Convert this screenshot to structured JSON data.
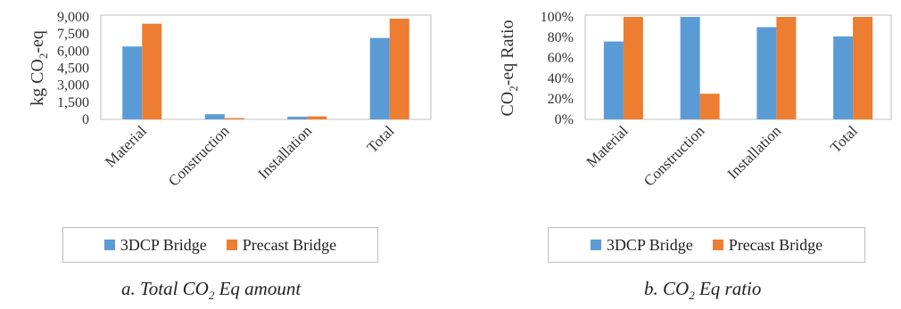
{
  "colors": {
    "series_1": "#5b9bd5",
    "series_2": "#ed7d31",
    "axis": "#bfbfbf"
  },
  "chart_data": [
    {
      "type": "bar",
      "categories": [
        "Material",
        "Construction",
        "Installation",
        "Total"
      ],
      "series": [
        {
          "name": "3DCP Bridge",
          "values": [
            6400,
            450,
            230,
            7150
          ]
        },
        {
          "name": "Precast Bridge",
          "values": [
            8400,
            110,
            260,
            8850
          ]
        }
      ],
      "ylabel_parts": [
        "kg CO",
        "2",
        "-eq"
      ],
      "yticks": [
        "0",
        "1,500",
        "3,000",
        "4,500",
        "6,000",
        "7,500",
        "9,000"
      ],
      "ylim": [
        0,
        9000
      ],
      "legend": "bottom",
      "grid": false,
      "caption_parts": [
        "a. Total CO",
        "2",
        " Eq amount"
      ]
    },
    {
      "type": "bar",
      "categories": [
        "Material",
        "Construction",
        "Installation",
        "Total"
      ],
      "series": [
        {
          "name": "3DCP Bridge",
          "values": [
            76,
            100,
            90,
            81
          ]
        },
        {
          "name": "Precast Bridge",
          "values": [
            100,
            25,
            100,
            100
          ]
        }
      ],
      "ylabel_parts": [
        "CO",
        "2",
        "-eq Ratio"
      ],
      "yticks": [
        "0%",
        "20%",
        "40%",
        "60%",
        "80%",
        "100%"
      ],
      "ylim": [
        0,
        100
      ],
      "legend": "bottom",
      "grid": false,
      "caption_parts": [
        "b. CO",
        "2",
        " Eq ratio"
      ]
    }
  ]
}
